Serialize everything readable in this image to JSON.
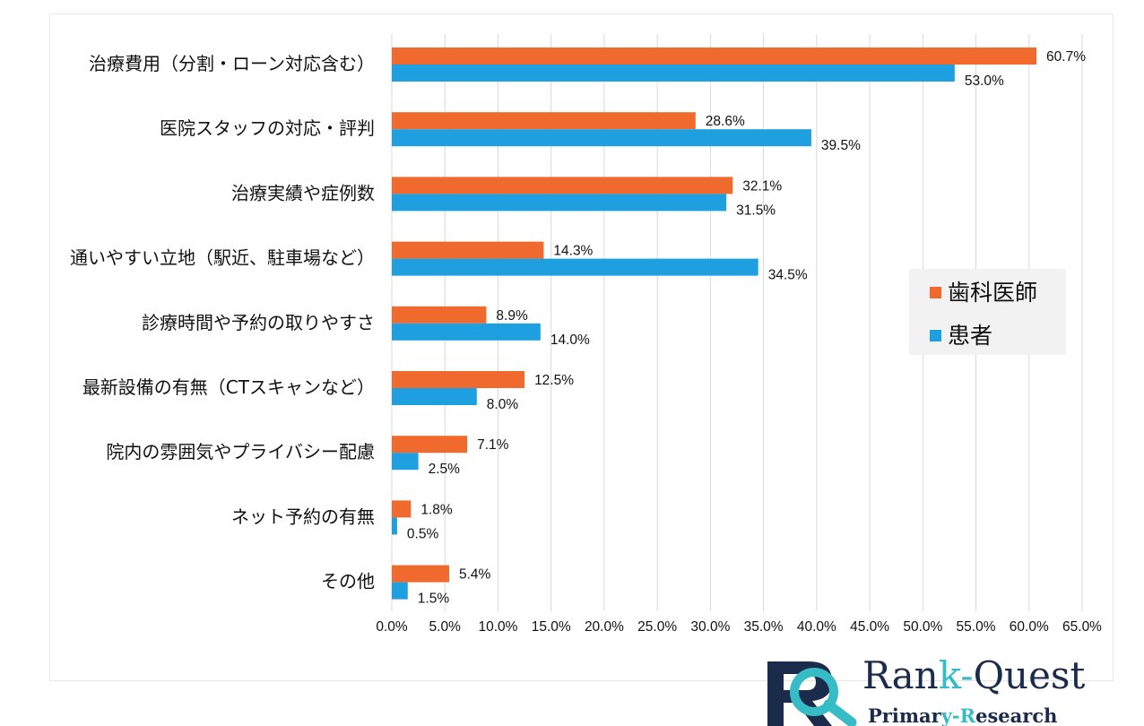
{
  "chart_data": {
    "type": "bar",
    "orientation": "horizontal",
    "categories": [
      "治療費用（分割・ローン対応含む）",
      "医院スタッフの対応・評判",
      "治療実績や症例数",
      "通いやすい立地（駅近、駐車場など）",
      "診療時間や予約の取りやすさ",
      "最新設備の有無（CTスキャンなど）",
      "院内の雰囲気やプライバシー配慮",
      "ネット予約の有無",
      "その他"
    ],
    "series": [
      {
        "name": "歯科医師",
        "color": "#ef6a2c",
        "values": [
          60.7,
          28.6,
          32.1,
          14.3,
          8.9,
          12.5,
          7.1,
          1.8,
          5.4
        ],
        "labels": [
          "60.7%",
          "28.6%",
          "32.1%",
          "14.3%",
          "8.9%",
          "12.5%",
          "7.1%",
          "1.8%",
          "5.4%"
        ]
      },
      {
        "name": "患者",
        "color": "#1e9fe0",
        "values": [
          53.0,
          39.5,
          31.5,
          34.5,
          14.0,
          8.0,
          2.5,
          0.5,
          1.5
        ],
        "labels": [
          "53.0%",
          "39.5%",
          "31.5%",
          "34.5%",
          "14.0%",
          "8.0%",
          "2.5%",
          "0.5%",
          "1.5%"
        ]
      }
    ],
    "xlim": [
      0,
      65
    ],
    "xticks": [
      "0.0%",
      "5.0%",
      "10.0%",
      "15.0%",
      "20.0%",
      "25.0%",
      "30.0%",
      "35.0%",
      "40.0%",
      "45.0%",
      "50.0%",
      "55.0%",
      "60.0%",
      "65.0%"
    ],
    "grid": true,
    "legend_position": "right"
  },
  "brand": {
    "name_a": "Ran",
    "name_b": "k-",
    "name_c": "Quest",
    "sub_a": "Primar",
    "sub_b": "y-",
    "sub_c": "R",
    "sub_d": "esearch"
  },
  "colors": {
    "grid": "#d9d9d9",
    "legend_bg": "#f2f2f2",
    "brand_navy": "#1b2b4b",
    "brand_teal": "#36bcc4"
  }
}
